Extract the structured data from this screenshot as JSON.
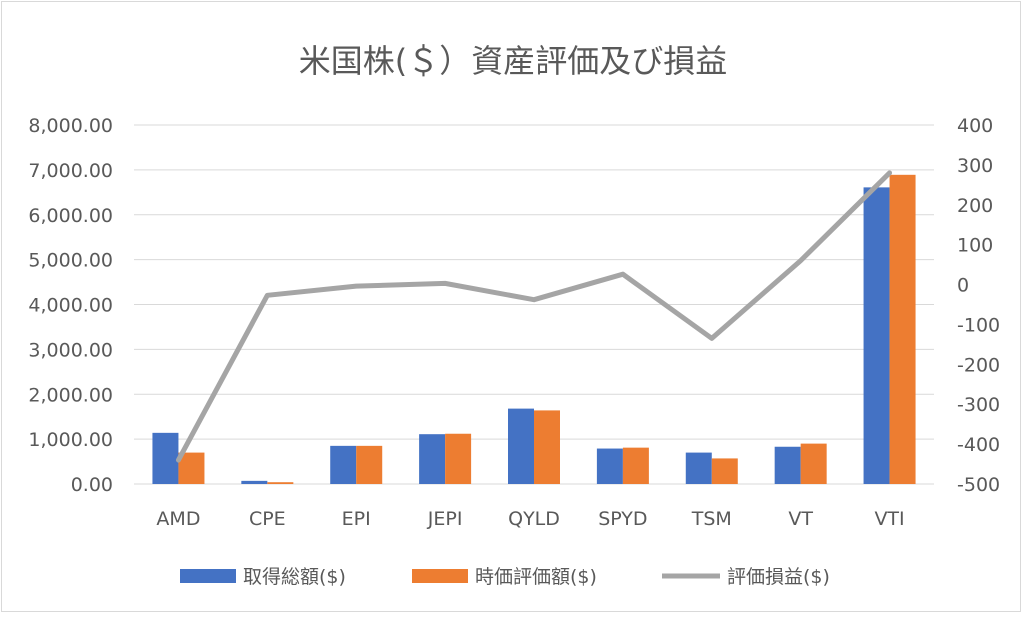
{
  "chart_data": {
    "type": "bar",
    "title": "米国株(＄）資産評価及び損益",
    "categories": [
      "AMD",
      "CPE",
      "EPI",
      "JEPI",
      "QYLD",
      "SPYD",
      "TSM",
      "VT",
      "VTI"
    ],
    "series": [
      {
        "name": "取得総額($)",
        "type": "bar",
        "axis": "left",
        "color": "#4472c4",
        "values": [
          1140,
          70,
          850,
          1110,
          1680,
          790,
          700,
          830,
          6610
        ]
      },
      {
        "name": "時価評価額($)",
        "type": "bar",
        "axis": "left",
        "color": "#ed7d31",
        "values": [
          700,
          40,
          850,
          1120,
          1640,
          810,
          570,
          900,
          6890
        ]
      },
      {
        "name": "評価損益($)",
        "type": "line",
        "axis": "right",
        "color": "#a5a5a5",
        "values": [
          -440,
          -27,
          -4,
          3,
          -38,
          26,
          -135,
          60,
          280
        ]
      }
    ],
    "y_left": {
      "min": 0,
      "max": 8000,
      "step": 1000,
      "tick_labels": [
        "0.00",
        "1,000.00",
        "2,000.00",
        "3,000.00",
        "4,000.00",
        "5,000.00",
        "6,000.00",
        "7,000.00",
        "8,000.00"
      ]
    },
    "y_right": {
      "min": -500,
      "max": 400,
      "step": 100,
      "tick_labels": [
        "-500",
        "-400",
        "-300",
        "-200",
        "-100",
        "0",
        "100",
        "200",
        "300",
        "400"
      ]
    },
    "grid": true,
    "legend_position": "bottom"
  }
}
